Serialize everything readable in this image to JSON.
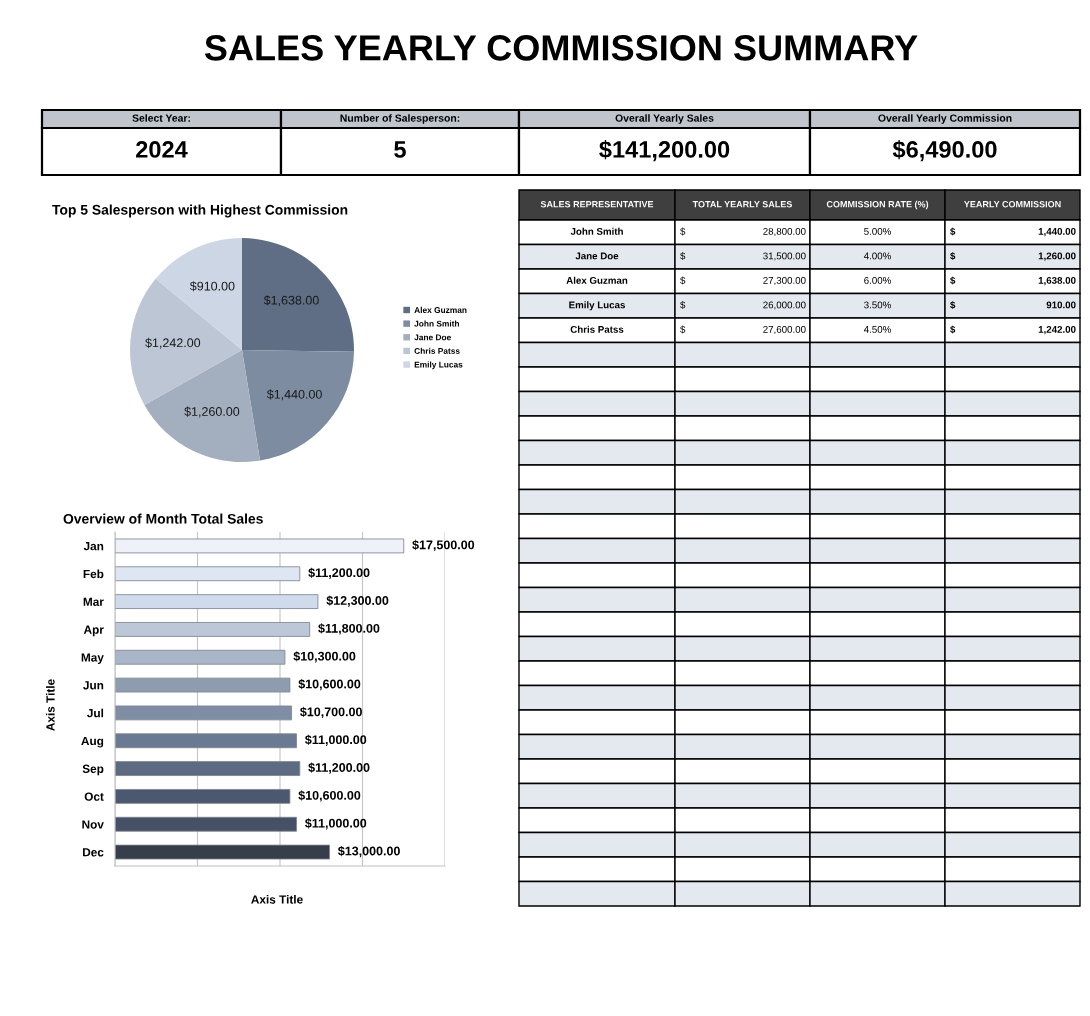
{
  "chart_data": [
    {
      "type": "other",
      "title": "SALES YEARLY COMMISSION SUMMARY",
      "annotations": [
        "Select Year:",
        "Number of Salesperson:",
        "Overall Yearly Sales",
        "Overall Yearly Commission",
        "2024",
        "5",
        "$141,200.00",
        "$6,490.00"
      ]
    },
    {
      "type": "pie",
      "title": "Top 5 Salesperson with Highest Commission",
      "categories": [
        "Alex Guzman",
        "John Smith",
        "Jane Doe",
        "Chris Patss",
        "Emily Lucas"
      ],
      "values": [
        1638,
        1440,
        1260,
        1242,
        910
      ],
      "colors": [
        "#5f6e84",
        "#7e8ca1",
        "#a3aebe",
        "#bcc6d5",
        "#cdd6e4"
      ],
      "value_labels": [
        "$1,638.00",
        "$1,440.00",
        "$1,260.00",
        "$1,242.00",
        "$910.00"
      ],
      "legend": "right"
    },
    {
      "type": "other",
      "categories": [
        "SALES REPRESENTATIVE",
        "TOTAL YEARLY SALES",
        "COMMISSION RATE (%)",
        "YEARLY COMMISSION"
      ],
      "annotations": [
        "John Smith",
        "$ 28,800.00",
        "5.00%",
        "$ 1,440.00",
        "Jane Doe",
        "$ 31,500.00",
        "4.00%",
        "$ 1,260.00",
        "Alex Guzman",
        "$ 27,300.00",
        "6.00%",
        "$ 1,638.00",
        "Emily Lucas",
        "$ 26,000.00",
        "3.50%",
        "$ 910.00",
        "Chris Patss",
        "$ 27,600.00",
        "4.50%",
        "$ 1,242.00"
      ]
    },
    {
      "type": "bar",
      "orientation": "horizontal",
      "title": "Overview of Month Total Sales",
      "xlabel": "Axis Title",
      "ylabel": "Axis Title",
      "categories": [
        "Jan",
        "Feb",
        "Mar",
        "Apr",
        "May",
        "Jun",
        "Jul",
        "Aug",
        "Sep",
        "Oct",
        "Nov",
        "Dec"
      ],
      "values": [
        17500,
        11200,
        12300,
        11800,
        10300,
        10600,
        10700,
        11000,
        11200,
        10600,
        11000,
        13000
      ],
      "colors": [
        "#eef2f8",
        "#dde6f2",
        "#cfdaea",
        "#bcc8d8",
        "#a9b6c8",
        "#8e9cb0",
        "#7f8ea4",
        "#6a7a92",
        "#5c6b82",
        "#4c5870",
        "#475166",
        "#363d4b"
      ],
      "value_labels": [
        "$17,500.00",
        "$11,200.00",
        "$12,300.00",
        "$11,800.00",
        "$10,300.00",
        "$10,600.00",
        "$10,700.00",
        "$11,000.00",
        "$11,200.00",
        "$10,600.00",
        "$11,000.00",
        "$13,000.00"
      ],
      "xlim": [
        0,
        20000
      ],
      "xticks": [
        {
          "value": 0,
          "label": null
        },
        {
          "value": 5000,
          "label": null
        },
        {
          "value": 10000,
          "label": null
        },
        {
          "value": 15000,
          "label": null
        },
        {
          "value": 20000,
          "label": null
        }
      ],
      "grid": "x",
      "tick_labels": "y"
    }
  ]
}
